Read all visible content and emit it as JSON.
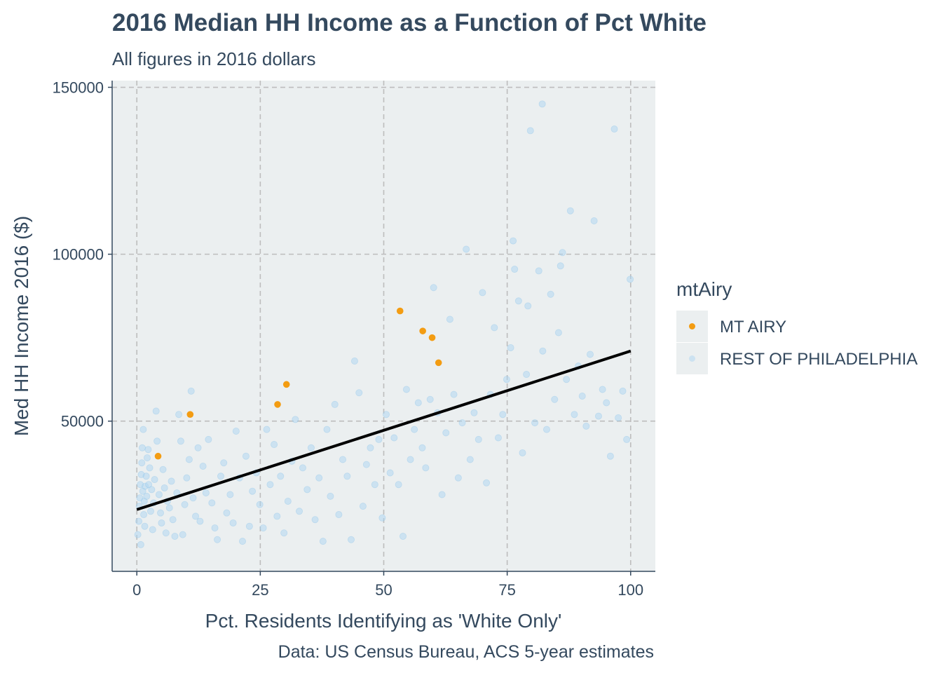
{
  "chart_data": {
    "type": "scatter",
    "title": "2016 Median HH Income as a Function of Pct White",
    "subtitle": "All figures in 2016 dollars",
    "xlabel": "Pct. Residents Identifying as 'White Only'",
    "ylabel": "Med HH Income 2016 ($)",
    "caption": "Data: US Census Bureau, ACS 5-year estimates",
    "xlim": [
      -5,
      105
    ],
    "ylim": [
      5000,
      152000
    ],
    "x_ticks": [
      0,
      25,
      50,
      75,
      100
    ],
    "y_ticks": [
      50000,
      100000,
      150000
    ],
    "grid": true,
    "legend": {
      "title": "mtAiry",
      "position": "right",
      "entries": [
        "MT AIRY",
        "REST OF PHILADELPHIA"
      ]
    },
    "colors": {
      "mt_airy": "#f39c12",
      "rest": "#aed6f1",
      "trend": "#000000",
      "panel": "#ebeff0",
      "grid": "#bdbdbd",
      "text": "#34495e"
    },
    "trend_line": {
      "x": [
        0,
        100
      ],
      "y": [
        23500,
        71000
      ]
    },
    "series": [
      {
        "name": "MT AIRY",
        "points": [
          [
            4.3,
            39500
          ],
          [
            10.8,
            52000
          ],
          [
            28.5,
            55000
          ],
          [
            30.3,
            61000
          ],
          [
            53.3,
            83000
          ],
          [
            57.9,
            77000
          ],
          [
            59.8,
            75000
          ],
          [
            61.1,
            67500
          ]
        ]
      },
      {
        "name": "REST OF PHILADELPHIA",
        "points": [
          [
            0.2,
            16000
          ],
          [
            0.4,
            20000
          ],
          [
            0.5,
            24500
          ],
          [
            0.6,
            27000
          ],
          [
            0.7,
            31000
          ],
          [
            0.9,
            34000
          ],
          [
            1.0,
            37500
          ],
          [
            1.1,
            42000
          ],
          [
            1.2,
            29000
          ],
          [
            1.4,
            22000
          ],
          [
            1.5,
            26000
          ],
          [
            1.7,
            30500
          ],
          [
            1.9,
            33500
          ],
          [
            2.1,
            39000
          ],
          [
            2.3,
            41500
          ],
          [
            0.8,
            13000
          ],
          [
            1.3,
            47500
          ],
          [
            1.6,
            18500
          ],
          [
            2.0,
            27500
          ],
          [
            2.4,
            31000
          ],
          [
            2.6,
            36000
          ],
          [
            2.8,
            23000
          ],
          [
            3.0,
            29500
          ],
          [
            3.2,
            17500
          ],
          [
            3.4,
            25500
          ],
          [
            3.6,
            32500
          ],
          [
            3.9,
            53000
          ],
          [
            4.1,
            44000
          ],
          [
            4.5,
            28000
          ],
          [
            4.8,
            22500
          ],
          [
            5.0,
            19500
          ],
          [
            5.3,
            35500
          ],
          [
            5.6,
            30000
          ],
          [
            5.9,
            16500
          ],
          [
            6.2,
            26000
          ],
          [
            6.6,
            24000
          ],
          [
            7.0,
            32000
          ],
          [
            7.3,
            20500
          ],
          [
            7.7,
            15500
          ],
          [
            8.1,
            28500
          ],
          [
            8.5,
            52000
          ],
          [
            8.9,
            44000
          ],
          [
            9.3,
            16000
          ],
          [
            9.7,
            25000
          ],
          [
            10.1,
            33000
          ],
          [
            10.6,
            38500
          ],
          [
            11.0,
            59000
          ],
          [
            11.4,
            27000
          ],
          [
            11.9,
            21500
          ],
          [
            12.4,
            42000
          ],
          [
            12.8,
            20000
          ],
          [
            13.4,
            36500
          ],
          [
            14.0,
            28500
          ],
          [
            14.5,
            44500
          ],
          [
            15.2,
            25500
          ],
          [
            15.8,
            18000
          ],
          [
            16.3,
            14500
          ],
          [
            17.0,
            33500
          ],
          [
            17.6,
            37500
          ],
          [
            18.2,
            22500
          ],
          [
            18.9,
            28000
          ],
          [
            19.5,
            19500
          ],
          [
            20.1,
            47000
          ],
          [
            20.8,
            33000
          ],
          [
            21.4,
            14000
          ],
          [
            22.1,
            39500
          ],
          [
            22.8,
            18500
          ],
          [
            23.4,
            29000
          ],
          [
            24.2,
            34500
          ],
          [
            24.9,
            25000
          ],
          [
            25.6,
            18000
          ],
          [
            26.3,
            47500
          ],
          [
            27.0,
            31000
          ],
          [
            27.8,
            43000
          ],
          [
            28.4,
            21500
          ],
          [
            29.1,
            33500
          ],
          [
            29.8,
            16500
          ],
          [
            30.6,
            26000
          ],
          [
            31.4,
            38000
          ],
          [
            32.1,
            50500
          ],
          [
            32.9,
            23000
          ],
          [
            33.6,
            36000
          ],
          [
            34.5,
            29500
          ],
          [
            35.3,
            42000
          ],
          [
            36.1,
            20500
          ],
          [
            36.9,
            33000
          ],
          [
            37.7,
            14000
          ],
          [
            38.5,
            47500
          ],
          [
            39.2,
            27500
          ],
          [
            40.1,
            55000
          ],
          [
            40.9,
            22000
          ],
          [
            41.7,
            38500
          ],
          [
            42.6,
            33500
          ],
          [
            43.4,
            14500
          ],
          [
            44.1,
            68000
          ],
          [
            45.0,
            58500
          ],
          [
            45.8,
            24500
          ],
          [
            46.5,
            37000
          ],
          [
            47.3,
            42000
          ],
          [
            48.2,
            31000
          ],
          [
            49.0,
            44500
          ],
          [
            49.7,
            21000
          ],
          [
            50.5,
            52000
          ],
          [
            51.3,
            34500
          ],
          [
            52.1,
            45000
          ],
          [
            53.0,
            31000
          ],
          [
            53.9,
            15500
          ],
          [
            54.6,
            59500
          ],
          [
            55.4,
            38500
          ],
          [
            56.2,
            47500
          ],
          [
            57.0,
            55500
          ],
          [
            57.8,
            42000
          ],
          [
            58.5,
            36000
          ],
          [
            59.4,
            56500
          ],
          [
            60.1,
            90000
          ],
          [
            60.9,
            52500
          ],
          [
            61.8,
            28000
          ],
          [
            62.6,
            46500
          ],
          [
            63.4,
            80500
          ],
          [
            64.2,
            58000
          ],
          [
            65.1,
            33000
          ],
          [
            65.9,
            49500
          ],
          [
            66.7,
            101500
          ],
          [
            67.5,
            38500
          ],
          [
            68.3,
            52500
          ],
          [
            69.2,
            44500
          ],
          [
            70.0,
            88500
          ],
          [
            70.8,
            31500
          ],
          [
            71.6,
            58000
          ],
          [
            72.4,
            78000
          ],
          [
            73.2,
            45000
          ],
          [
            74.1,
            52000
          ],
          [
            74.9,
            62500
          ],
          [
            75.7,
            72000
          ],
          [
            76.5,
            95500
          ],
          [
            77.3,
            86000
          ],
          [
            78.1,
            40500
          ],
          [
            78.9,
            64000
          ],
          [
            79.7,
            137000
          ],
          [
            80.6,
            49500
          ],
          [
            81.4,
            95000
          ],
          [
            82.2,
            71000
          ],
          [
            83.0,
            47500
          ],
          [
            83.8,
            88000
          ],
          [
            84.6,
            56500
          ],
          [
            85.4,
            76500
          ],
          [
            86.2,
            100500
          ],
          [
            87.0,
            62500
          ],
          [
            87.8,
            113000
          ],
          [
            88.6,
            52000
          ],
          [
            89.4,
            66500
          ],
          [
            90.2,
            57500
          ],
          [
            91.0,
            48500
          ],
          [
            91.8,
            70000
          ],
          [
            92.6,
            110000
          ],
          [
            93.5,
            51500
          ],
          [
            94.3,
            59500
          ],
          [
            95.1,
            55500
          ],
          [
            95.9,
            39500
          ],
          [
            96.7,
            137500
          ],
          [
            97.5,
            51000
          ],
          [
            98.4,
            59000
          ],
          [
            99.2,
            44500
          ],
          [
            99.9,
            92500
          ],
          [
            82.1,
            145000
          ],
          [
            76.2,
            104000
          ],
          [
            85.8,
            96500
          ],
          [
            79.2,
            84500
          ]
        ]
      }
    ]
  }
}
